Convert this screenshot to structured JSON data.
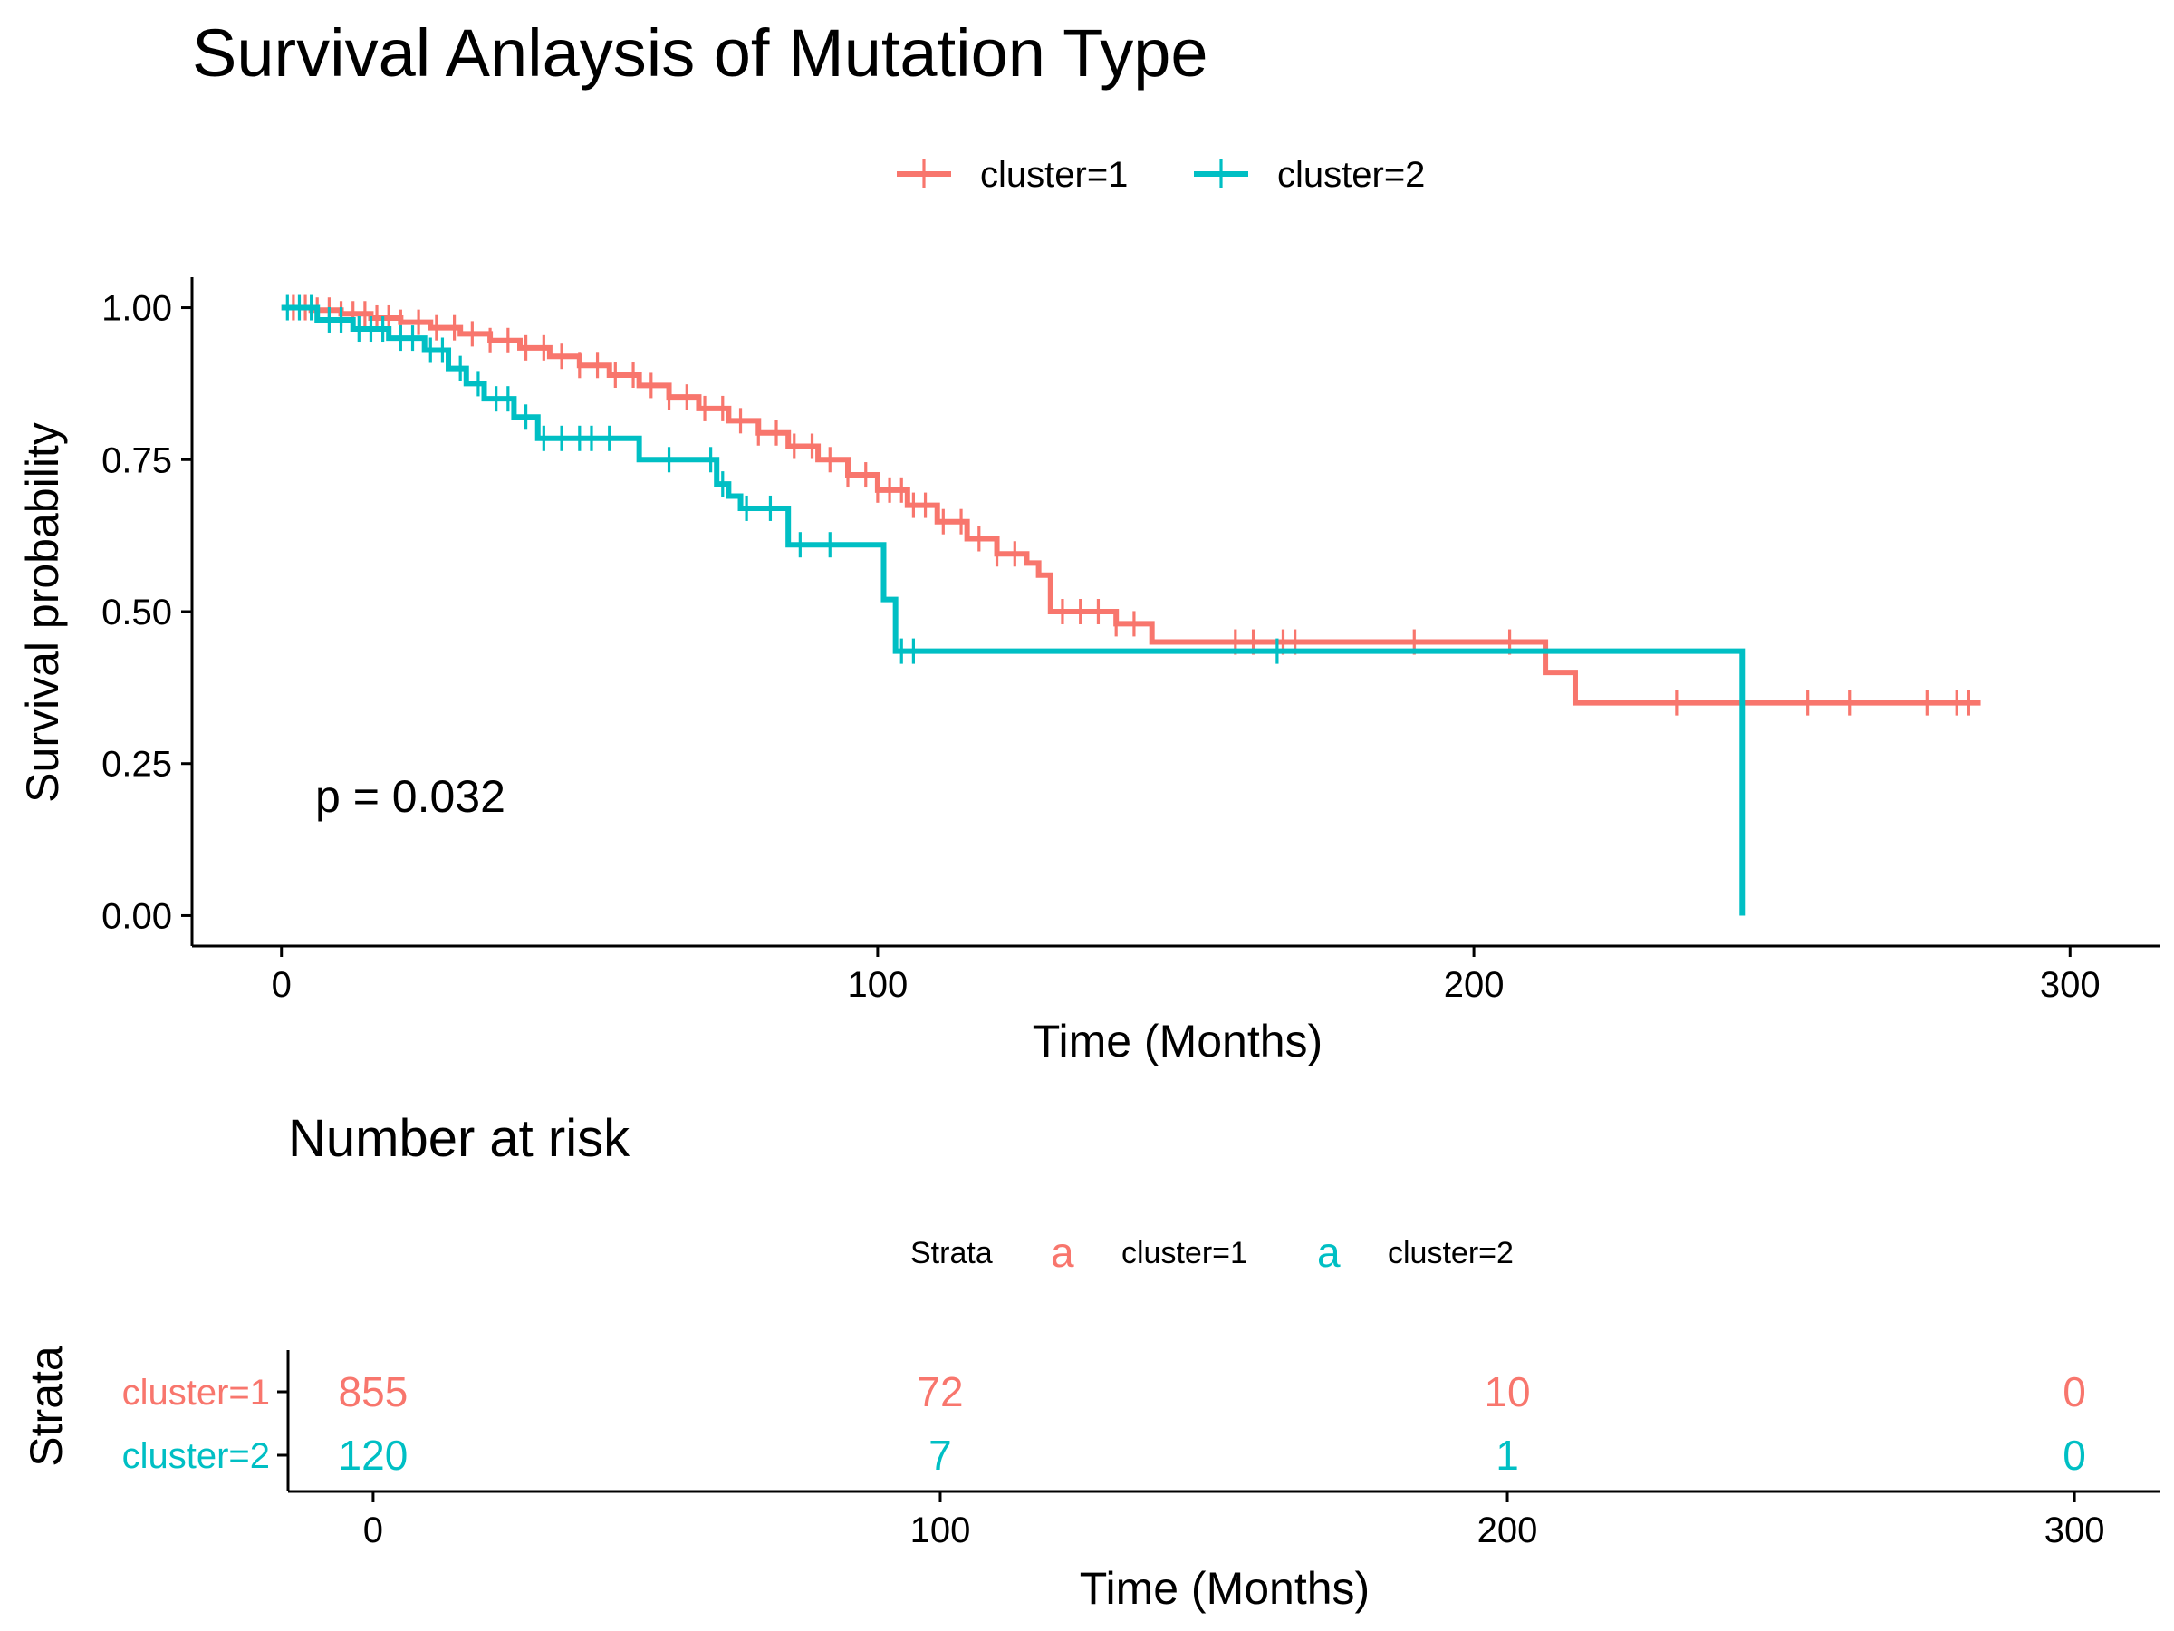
{
  "chart_data": [
    {
      "type": "line",
      "subtype": "kaplan-meier",
      "title": "Survival Anlaysis of Mutation Type",
      "xlabel": "Time (Months)",
      "ylabel": "Survival probability",
      "xlim": [
        -15,
        315
      ],
      "ylim": [
        -0.05,
        1.05
      ],
      "x_ticks": [
        0,
        100,
        200,
        300
      ],
      "y_ticks": [
        0,
        0.25,
        0.5,
        0.75,
        1
      ],
      "y_tick_labels": [
        "0.00",
        "0.25",
        "0.50",
        "0.75",
        "1.00"
      ],
      "legend_position": "top",
      "annotation": "p = 0.032",
      "series": [
        {
          "name": "cluster=1",
          "color": "#F8766D",
          "steps": [
            [
              0,
              1.0
            ],
            [
              5,
              0.996
            ],
            [
              10,
              0.99
            ],
            [
              15,
              0.983
            ],
            [
              20,
              0.976
            ],
            [
              25,
              0.967
            ],
            [
              30,
              0.957
            ],
            [
              35,
              0.946
            ],
            [
              40,
              0.934
            ],
            [
              45,
              0.92
            ],
            [
              50,
              0.905
            ],
            [
              55,
              0.889
            ],
            [
              60,
              0.872
            ],
            [
              65,
              0.853
            ],
            [
              70,
              0.834
            ],
            [
              75,
              0.814
            ],
            [
              80,
              0.794
            ],
            [
              85,
              0.772
            ],
            [
              90,
              0.75
            ],
            [
              95,
              0.725
            ],
            [
              100,
              0.7
            ],
            [
              105,
              0.675
            ],
            [
              110,
              0.648
            ],
            [
              115,
              0.62
            ],
            [
              120,
              0.595
            ],
            [
              125,
              0.58
            ],
            [
              127,
              0.56
            ],
            [
              129,
              0.5
            ],
            [
              140,
              0.48
            ],
            [
              146,
              0.45
            ],
            [
              212,
              0.4
            ],
            [
              217,
              0.35
            ],
            [
              285,
              0.35
            ]
          ],
          "censor_x": [
            2,
            4,
            6,
            8,
            10,
            12,
            14,
            16,
            18,
            20,
            23,
            26,
            29,
            32,
            35,
            38,
            41,
            44,
            47,
            50,
            53,
            56,
            59,
            62,
            65,
            68,
            71,
            74,
            77,
            80,
            83,
            86,
            89,
            92,
            95,
            98,
            100,
            102,
            104,
            106,
            108,
            111,
            114,
            117,
            120,
            123,
            131,
            134,
            137,
            140,
            143,
            160,
            163,
            168,
            170,
            190,
            206,
            234,
            256,
            263,
            276,
            281,
            283
          ]
        },
        {
          "name": "cluster=2",
          "color": "#00BFC4",
          "steps": [
            [
              0,
              1.0
            ],
            [
              6,
              0.98
            ],
            [
              12,
              0.965
            ],
            [
              18,
              0.95
            ],
            [
              24,
              0.93
            ],
            [
              28,
              0.9
            ],
            [
              31,
              0.875
            ],
            [
              34,
              0.85
            ],
            [
              39,
              0.82
            ],
            [
              43,
              0.785
            ],
            [
              60,
              0.75
            ],
            [
              73,
              0.71
            ],
            [
              75,
              0.69
            ],
            [
              77,
              0.67
            ],
            [
              85,
              0.61
            ],
            [
              101,
              0.52
            ],
            [
              103,
              0.435
            ],
            [
              245,
              0.435
            ],
            [
              245,
              0.0
            ]
          ],
          "censor_x": [
            1,
            3,
            5,
            8,
            10,
            13,
            15,
            17,
            20,
            22,
            25,
            27,
            30,
            33,
            36,
            38,
            41,
            44,
            47,
            50,
            52,
            55,
            65,
            72,
            74,
            78,
            82,
            87,
            92,
            104,
            106,
            167
          ]
        }
      ]
    },
    {
      "type": "table",
      "title": "Number at risk",
      "xlabel": "Time (Months)",
      "ylabel": "Strata",
      "xlim": [
        -15,
        315
      ],
      "x_ticks": [
        0,
        100,
        200,
        300
      ],
      "legend_title": "Strata",
      "legend_glyph": "a",
      "rows": [
        {
          "name": "cluster=1",
          "color": "#F8766D",
          "values": [
            855,
            72,
            10,
            0
          ]
        },
        {
          "name": "cluster=2",
          "color": "#00BFC4",
          "values": [
            120,
            7,
            1,
            0
          ]
        }
      ]
    }
  ]
}
